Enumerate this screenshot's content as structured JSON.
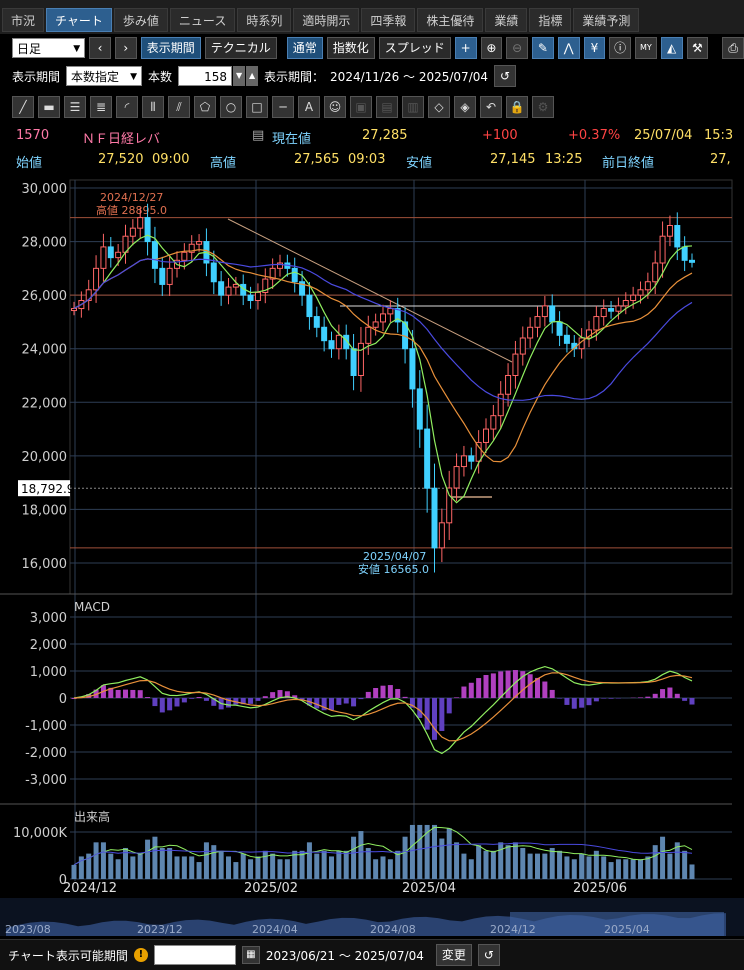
{
  "tabs": [
    "市況",
    "チャート",
    "歩み値",
    "ニュース",
    "時系列",
    "適時開示",
    "四季報",
    "株主優待",
    "業績",
    "指標",
    "業績予測"
  ],
  "active_tab": 1,
  "toolbar1": {
    "period_select": "日足",
    "display_period_btn": "表示期間",
    "technical_btn": "テクニカル",
    "normal_btn": "通常",
    "index_btn": "指数化",
    "spread_btn": "スプレッド",
    "icons": [
      "plus-icon",
      "zoom-in-icon",
      "zoom-out-icon",
      "pencil-icon",
      "trend-icon",
      "yen-icon",
      "info-icon",
      "my-icon",
      "area-chart-icon",
      "wrench-icon",
      "print-icon"
    ]
  },
  "toolbar2": {
    "period_label": "表示期間",
    "period_mode": "本数指定",
    "count_label": "本数",
    "count_value": "158",
    "range_label": "表示期間：",
    "range_value": "2024/11/26 ～ 2025/07/04"
  },
  "draw_tools": [
    "line-tool-icon",
    "ruler-icon",
    "hlines-icon",
    "hlines2-icon",
    "fan-icon",
    "vlines-icon",
    "fork-icon",
    "pentagon-icon",
    "circle-icon",
    "rect-icon",
    "hline-icon",
    "text-icon",
    "icon-tool-icon",
    "stamp-icon",
    "stamp2-icon",
    "stamp3-icon",
    "eraser-icon",
    "eraser2-icon",
    "undo-icon",
    "lock-icon",
    "settings-icon"
  ],
  "info": {
    "code": "1570",
    "name": "ＮＦ日経レバ",
    "current_label": "現在値",
    "current_value": "27,285",
    "change": "+100",
    "change_pct": "+0.37%",
    "date": "25/07/04",
    "time": "15:3",
    "open_label": "始値",
    "open_value": "27,520",
    "open_time": "09:00",
    "high_label": "高値",
    "high_value": "27,565",
    "high_time": "09:03",
    "low_label": "安値",
    "low_value": "27,145",
    "low_time": "13:25",
    "prev_label": "前日終値",
    "prev_value": "27,"
  },
  "chart_data": {
    "type": "candlestick",
    "price_axis": {
      "ticks": [
        "30,000",
        "28,000",
        "26,000",
        "24,000",
        "22,000",
        "20,000",
        "18,000",
        "16,000"
      ],
      "values": [
        30000,
        28000,
        26000,
        24000,
        22000,
        20000,
        18000,
        16000
      ]
    },
    "crosshair_label": "18,792.9",
    "high_annotation": {
      "date": "2024/12/27",
      "label": "高値 28895.0",
      "value": 28895
    },
    "low_annotation": {
      "date": "2025/04/07",
      "label": "安値 16565.0",
      "value": 16565
    },
    "hline_level": 26000,
    "macd": {
      "title": "MACD",
      "ticks": [
        "3,000",
        "2,000",
        "1,000",
        "0",
        "-1,000",
        "-2,000",
        "-3,000"
      ],
      "values": [
        3000,
        2000,
        1000,
        0,
        -1000,
        -2000,
        -3000
      ]
    },
    "volume": {
      "title": "出来高",
      "ticks": [
        "10,000K",
        "0"
      ],
      "values": [
        10000,
        0
      ]
    },
    "x_labels": [
      "2024/12",
      "2025/02",
      "2025/04",
      "2025/06"
    ],
    "navigator_labels": [
      "2023/08",
      "2023/12",
      "2024/04",
      "2024/08",
      "2024/12",
      "2025/04"
    ],
    "close_path": [
      25500,
      25800,
      26200,
      27000,
      27800,
      27400,
      27600,
      28200,
      28500,
      28895,
      28000,
      27000,
      26400,
      27000,
      27300,
      27600,
      27900,
      28000,
      27200,
      26500,
      26000,
      26300,
      26400,
      26000,
      25800,
      26100,
      26600,
      27000,
      27200,
      27000,
      26500,
      26000,
      25200,
      24800,
      24300,
      24000,
      24500,
      24000,
      23000,
      24200,
      24800,
      25000,
      25300,
      25500,
      25000,
      24000,
      22500,
      21000,
      18792,
      16565,
      17500,
      18800,
      19600,
      20000,
      19800,
      20500,
      21000,
      21500,
      22300,
      23000,
      23800,
      24400,
      24800,
      25200,
      25600,
      25000,
      24500,
      24200,
      24000,
      24400,
      24700,
      25200,
      25500,
      25400,
      25600,
      25800,
      26000,
      26200,
      26500,
      27200,
      28200,
      28600,
      27800,
      27300,
      27285
    ]
  },
  "bottom": {
    "label": "チャート表示可能期間",
    "range": "2023/06/21 ～ 2025/07/04",
    "change_btn": "変更"
  },
  "colors": {
    "up": "#ff6666",
    "down": "#40d0ff",
    "ma_short": "#90ee60",
    "ma_mid": "#e8903a",
    "ma_long": "#4a4adf",
    "macd_pos": "#b040c0",
    "macd_neg": "#6040c0"
  }
}
